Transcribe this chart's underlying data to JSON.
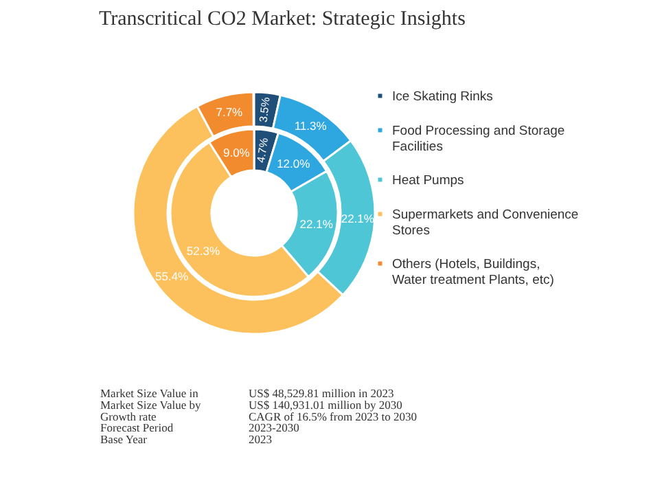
{
  "chart_data": {
    "type": "donut",
    "title": "Transcritical CO2 Market: Strategic Insights",
    "categories": [
      "Ice Skating Rinks",
      "Food Processing and Storage Facilities",
      "Heat Pumps",
      "Supermarkets and Convenience Stores",
      "Others (Hotels, Buildings, Water treatment Plants, etc)"
    ],
    "colors": [
      "#1f4e79",
      "#2ea6df",
      "#4fc6d6",
      "#fcc15c",
      "#f28a2e"
    ],
    "series": [
      {
        "values": [
          3.5,
          11.3,
          22.1,
          55.4,
          7.7
        ],
        "value_labels": [
          "3.5%",
          "11.3%",
          "22.1%",
          "55.4%",
          "7.7%"
        ]
      },
      {
        "values": [
          4.7,
          12.0,
          22.1,
          52.3,
          9.0
        ],
        "value_labels": [
          "4.7%",
          "12.0%",
          "22.1%",
          "52.3%",
          "9.0%"
        ]
      }
    ],
    "legend": "right",
    "annotations": [
      "Market Size Value in",
      "US$ 48,529.81 million in 2023",
      "Market Size Value by",
      "US$ 140,931.01 million by 2030",
      "Growth rate",
      "CAGR of 16.5% from 2023 to 2030",
      "Forecast Period",
      "2023-2030",
      "Base Year",
      "2023"
    ]
  }
}
